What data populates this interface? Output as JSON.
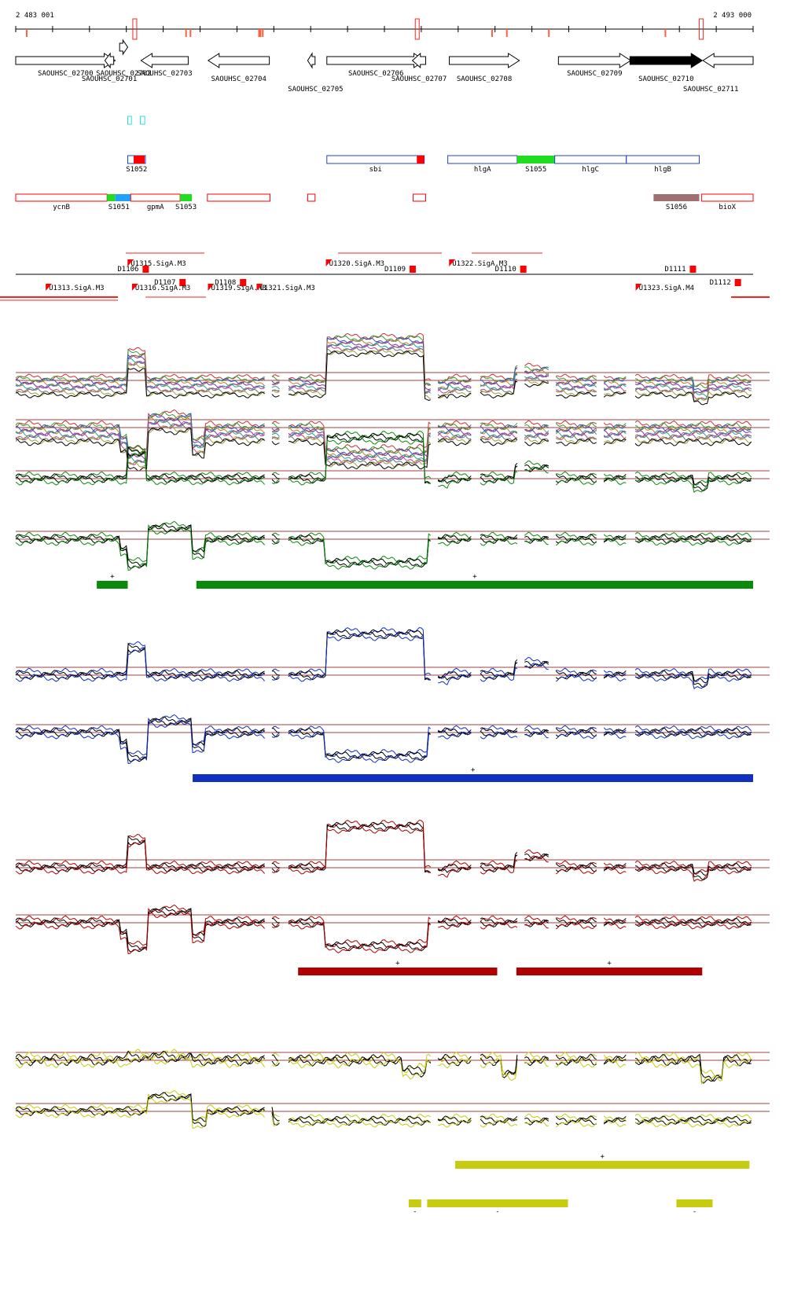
{
  "coords": {
    "start": "2 483 001",
    "end": "2 493 000",
    "start_bp": 2483001,
    "end_bp": 2493000
  },
  "colors": {
    "green": "#0a8a0a",
    "blue": "#1030c0",
    "red": "#b00000",
    "yellow": "#c8cc10",
    "refline": "#a04040",
    "box_red": "#ff0000",
    "box_blue": "#2040d0",
    "box_green": "#20dd20",
    "box_sky": "#20a0ff",
    "box_brown": "#a07070",
    "box_cyan": "#20e0e0"
  },
  "genes": [
    {
      "name": "SAOUHSC_02700",
      "from": 2483001,
      "to": 2484350,
      "strand": "+",
      "row": 0,
      "label_row": 0
    },
    {
      "name": "SAOUHSC_02701",
      "from": 2484210,
      "to": 2484330,
      "strand": "-",
      "row": 0,
      "label_row": 1
    },
    {
      "name": "SAOUHSC_02702",
      "from": 2484410,
      "to": 2484520,
      "strand": "+",
      "row": -1,
      "label_row": 0
    },
    {
      "name": "SAOUHSC_02703",
      "from": 2484700,
      "to": 2485340,
      "strand": "-",
      "row": 0,
      "label_row": 0
    },
    {
      "name": "SAOUHSC_02704",
      "from": 2485610,
      "to": 2486440,
      "strand": "-",
      "row": 0,
      "label_row": 1
    },
    {
      "name": "SAOUHSC_02705",
      "from": 2486960,
      "to": 2487060,
      "strand": "-",
      "row": 0,
      "label_row": 2
    },
    {
      "name": "SAOUHSC_02706",
      "from": 2487220,
      "to": 2488550,
      "strand": "+",
      "row": 0,
      "label_row": 0
    },
    {
      "name": "SAOUHSC_02707",
      "from": 2488380,
      "to": 2488560,
      "strand": "-",
      "row": 1,
      "label_row": 1
    },
    {
      "name": "SAOUHSC_02708",
      "from": 2488880,
      "to": 2489830,
      "strand": "+",
      "row": 0,
      "label_row": 1
    },
    {
      "name": "SAOUHSC_02709",
      "from": 2490360,
      "to": 2491340,
      "strand": "+",
      "row": 0,
      "label_row": 0
    },
    {
      "name": "SAOUHSC_02710",
      "from": 2491330,
      "to": 2492310,
      "strand": "+",
      "row": 0,
      "label_row": 1,
      "filled": true
    },
    {
      "name": "SAOUHSC_02711",
      "from": 2492320,
      "to": 2493000,
      "strand": "-",
      "row": 0,
      "label_row": 2
    }
  ],
  "feature_rows": {
    "row_a": [
      {
        "name": "",
        "from": 2484520,
        "to": 2484570,
        "color": "cyan"
      },
      {
        "name": "",
        "from": 2484690,
        "to": 2484750,
        "color": "cyan"
      }
    ],
    "row_b": [
      {
        "name": "S1052",
        "from": 2484520,
        "to": 2484760,
        "color": "blue_outline",
        "fill_from": 2484600,
        "fill_to": 2484750,
        "fill": "box_red"
      },
      {
        "name": "sbi",
        "from": 2487220,
        "to": 2488540,
        "color": "blue_outline",
        "fill_from": 2488440,
        "fill_to": 2488540,
        "fill": "box_red"
      },
      {
        "name": "hlgA",
        "from": 2488860,
        "to": 2489800,
        "color": "blue_outline"
      },
      {
        "name": "S1055",
        "from": 2489800,
        "to": 2490310,
        "color": "box_green"
      },
      {
        "name": "hlgC",
        "from": 2490310,
        "to": 2491280,
        "color": "blue_outline"
      },
      {
        "name": "hlgB",
        "from": 2491280,
        "to": 2492270,
        "color": "blue_outline"
      }
    ],
    "row_c": [
      {
        "name": "ycnB",
        "from": 2483001,
        "to": 2484240,
        "color": "red_outline"
      },
      {
        "name": "S1051",
        "from": 2484240,
        "to": 2484560,
        "color": "box_green_blue"
      },
      {
        "name": "gpmA",
        "from": 2484560,
        "to": 2485230,
        "color": "red_outline"
      },
      {
        "name": "S1053",
        "from": 2485230,
        "to": 2485390,
        "color": "box_green"
      },
      {
        "name": "",
        "from": 2485600,
        "to": 2486450,
        "color": "red_outline"
      },
      {
        "name": "",
        "from": 2486960,
        "to": 2487060,
        "color": "red_outline"
      },
      {
        "name": "",
        "from": 2488390,
        "to": 2488560,
        "color": "red_outline"
      },
      {
        "name": "S1056",
        "from": 2491650,
        "to": 2492270,
        "color": "box_brown"
      },
      {
        "name": "bioX",
        "from": 2492300,
        "to": 2493000,
        "color": "red_outline"
      }
    ]
  },
  "tss_labels": [
    {
      "text": "D1106",
      "pos": 2484380,
      "row": 0
    },
    {
      "text": "U1315.SigA.M3",
      "pos": 2484560,
      "row": -1
    },
    {
      "text": "U1313.SigA.M3",
      "pos": 2483450,
      "row": 1
    },
    {
      "text": "D1107",
      "pos": 2484880,
      "row": 0.5
    },
    {
      "text": "U1316.SigA.M3",
      "pos": 2484620,
      "row": 1
    },
    {
      "text": "D1108",
      "pos": 2485700,
      "row": 0.5
    },
    {
      "text": "U1319.SigA.M3",
      "pos": 2485650,
      "row": 1
    },
    {
      "text": "U1321.SigA.M3",
      "pos": 2486310,
      "row": 1
    },
    {
      "text": "U1320.SigA.M3",
      "pos": 2487250,
      "row": -1
    },
    {
      "text": "D1109",
      "pos": 2488000,
      "row": 0
    },
    {
      "text": "U1322.SigA.M3",
      "pos": 2488920,
      "row": -1
    },
    {
      "text": "D1110",
      "pos": 2489500,
      "row": 0
    },
    {
      "text": "D1111",
      "pos": 2491800,
      "row": 0
    },
    {
      "text": "U1323.SigA.M4",
      "pos": 2491450,
      "row": 1
    },
    {
      "text": "D1112",
      "pos": 2492410,
      "row": 0.5
    }
  ],
  "tracks": {
    "green_bars": [
      {
        "from": 2484100,
        "to": 2484520,
        "sign": "+"
      },
      {
        "from": 2485450,
        "to": 2493000,
        "sign": "+"
      }
    ],
    "blue_bars": [
      {
        "from": 2485400,
        "to": 2493000,
        "sign": "+"
      }
    ],
    "red_bars": [
      {
        "from": 2486830,
        "to": 2489530,
        "sign": "+"
      },
      {
        "from": 2489790,
        "to": 2492310,
        "sign": "+"
      }
    ],
    "yellow_bars": [
      {
        "from": 2488960,
        "to": 2492950,
        "sign": "+"
      }
    ],
    "yellow_bars_minus": [
      {
        "from": 2488330,
        "to": 2488500,
        "sign": "-"
      },
      {
        "from": 2488580,
        "to": 2490490,
        "sign": "-"
      },
      {
        "from": 2491960,
        "to": 2492450,
        "sign": "-"
      }
    ]
  }
}
